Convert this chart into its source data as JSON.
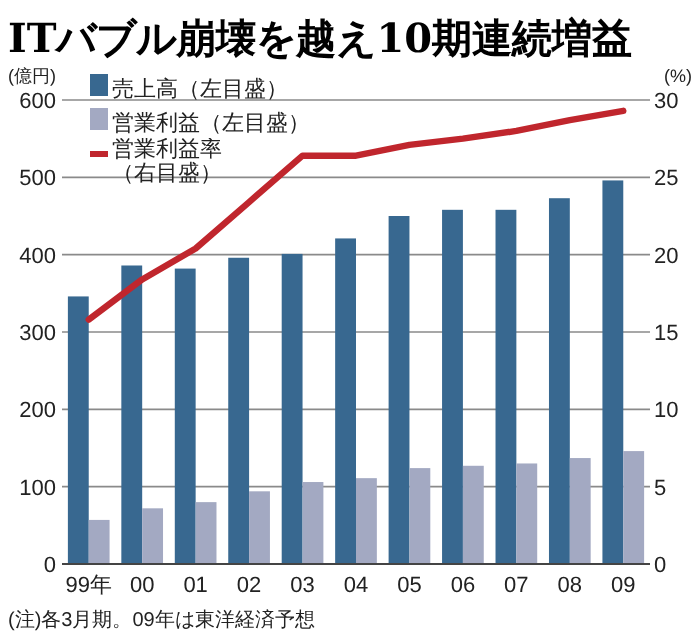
{
  "chart_data": {
    "type": "bar",
    "title": "ITバブル崩壊を越え10期連続増益",
    "ylabel": "(億円)",
    "y2label": "(%)",
    "categories": [
      "99年",
      "00",
      "01",
      "02",
      "03",
      "04",
      "05",
      "06",
      "07",
      "08",
      "09"
    ],
    "series": [
      {
        "name": "売上高（左目盛）",
        "color": "#386890",
        "values": [
          346,
          386,
          382,
          396,
          401,
          421,
          450,
          458,
          458,
          473,
          496
        ]
      },
      {
        "name": "営業利益（左目盛）",
        "color": "#a3a9c2",
        "values": [
          57,
          72,
          80,
          94,
          106,
          111,
          124,
          127,
          130,
          137,
          146
        ]
      },
      {
        "name": "営業利益率（右目盛）",
        "type": "line",
        "axis": "y2",
        "color": "#c0262d",
        "values": [
          15.8,
          18.4,
          20.4,
          23.4,
          26.4,
          26.4,
          27.1,
          27.5,
          28.0,
          28.7,
          29.3
        ]
      }
    ],
    "ylim": [
      0,
      600
    ],
    "yticks": [
      0,
      100,
      200,
      300,
      400,
      500,
      600
    ],
    "y2lim": [
      0,
      30
    ],
    "y2ticks": [
      0,
      5,
      10,
      15,
      20,
      25,
      30
    ],
    "grid": "y",
    "legend": "top left",
    "annotations": [
      "(注)各3月期。09年は東洋経済予想"
    ]
  }
}
